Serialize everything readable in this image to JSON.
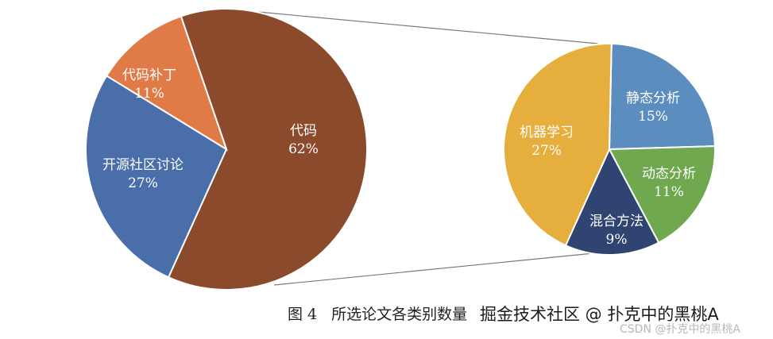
{
  "chart_data": [
    {
      "type": "pie",
      "slices": [
        {
          "label": "代码",
          "value": 62,
          "pct_label": "62%",
          "color": "#8B4A2B"
        },
        {
          "label": "开源社区讨论",
          "value": 27,
          "pct_label": "27%",
          "color": "#4A6EAA"
        },
        {
          "label": "代码补丁",
          "value": 11,
          "pct_label": "11%",
          "color": "#E07B48"
        }
      ]
    },
    {
      "type": "pie",
      "slices": [
        {
          "label": "静态分析",
          "value": 15,
          "pct_label": "15%",
          "color": "#5B8DBF"
        },
        {
          "label": "动态分析",
          "value": 11,
          "pct_label": "11%",
          "color": "#6FA84E"
        },
        {
          "label": "混合方法",
          "value": 9,
          "pct_label": "9%",
          "color": "#2F4470"
        },
        {
          "label": "机器学习",
          "value": 27,
          "pct_label": "27%",
          "color": "#E6AE3C"
        }
      ]
    }
  ],
  "caption": {
    "number": "图 4",
    "text": "所选论文各类别数量"
  },
  "watermark": {
    "main": "掘金技术社区 @ 扑克中的黑桃A",
    "sub": "CSDN @扑克中的黑桃A"
  }
}
